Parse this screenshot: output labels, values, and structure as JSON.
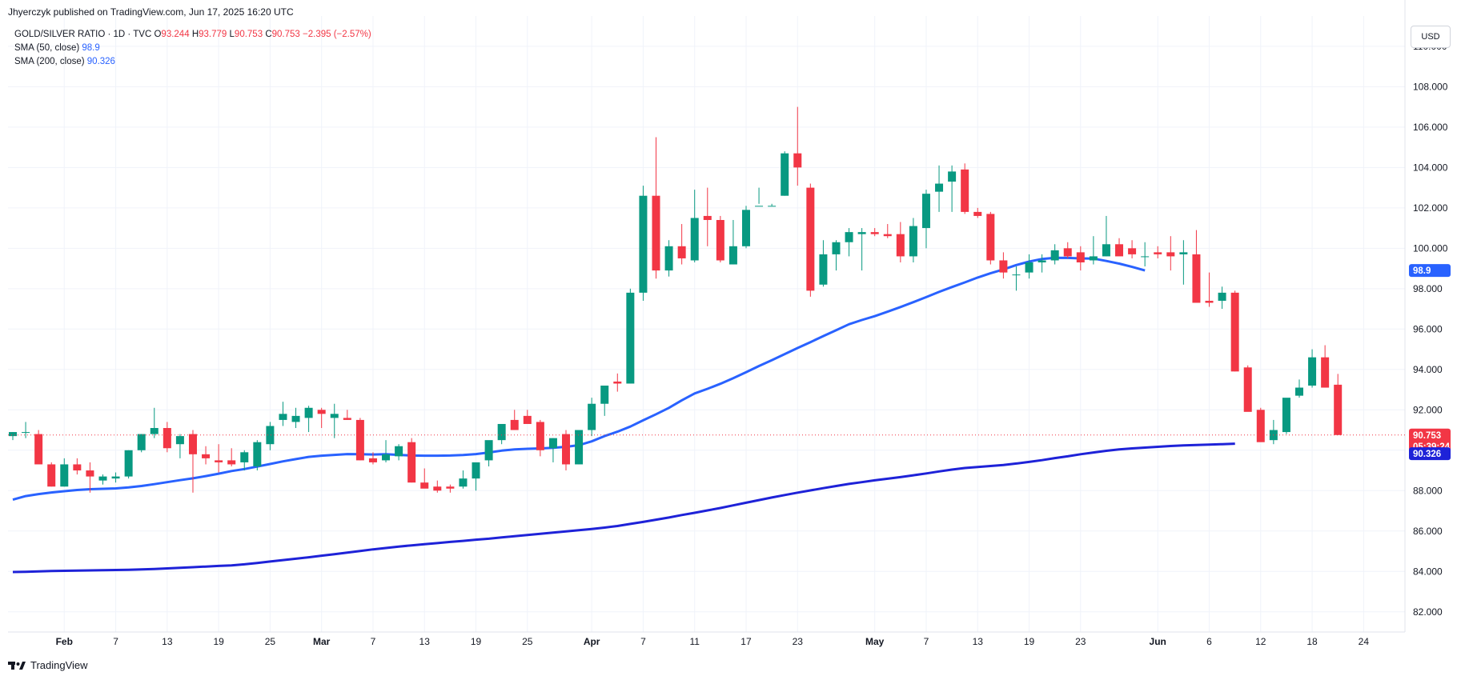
{
  "header": {
    "publisher": "Jhyerczyk published on TradingView.com, Jun 17, 2025 16:20 UTC"
  },
  "legend": {
    "symbol": "GOLD/SILVER RATIO · 1D · TVC",
    "o_label": "O",
    "o_value": "93.244",
    "h_label": "H",
    "h_value": "93.779",
    "l_label": "L",
    "l_value": "90.753",
    "c_label": "C",
    "c_value": "90.753",
    "change": "−2.395 (−2.57%)",
    "sma50_label": "SMA (50, close)",
    "sma50_value": "98.9",
    "sma200_label": "SMA (200, close)",
    "sma200_value": "90.326"
  },
  "currency_button": "USD",
  "brand": {
    "name": "TradingView"
  },
  "colors": {
    "up": "#089981",
    "down": "#f23645",
    "sma50": "#2962ff",
    "sma200": "#1e22d8",
    "grid": "#f0f3fa",
    "axis_text": "#131722"
  },
  "chart_data": {
    "type": "candlestick",
    "ylim": [
      81,
      111.5
    ],
    "y_ticks": [
      82,
      84,
      86,
      88,
      90,
      92,
      94,
      96,
      98,
      100,
      102,
      104,
      106,
      108,
      110
    ],
    "y_tick_labels": [
      "82.000",
      "84.000",
      "86.000",
      "88.000",
      "90.000",
      "92.000",
      "94.000",
      "96.000",
      "98.000",
      "100.000",
      "102.000",
      "104.000",
      "106.000",
      "108.000",
      "110.000"
    ],
    "x_ticks": [
      {
        "label": "Feb",
        "bar": 4,
        "bold": true
      },
      {
        "label": "7",
        "bar": 8
      },
      {
        "label": "13",
        "bar": 12
      },
      {
        "label": "19",
        "bar": 16
      },
      {
        "label": "25",
        "bar": 20
      },
      {
        "label": "Mar",
        "bar": 24,
        "bold": true
      },
      {
        "label": "7",
        "bar": 28
      },
      {
        "label": "13",
        "bar": 32
      },
      {
        "label": "19",
        "bar": 36
      },
      {
        "label": "25",
        "bar": 40
      },
      {
        "label": "Apr",
        "bar": 45,
        "bold": true
      },
      {
        "label": "7",
        "bar": 49
      },
      {
        "label": "11",
        "bar": 53
      },
      {
        "label": "17",
        "bar": 57
      },
      {
        "label": "23",
        "bar": 61
      },
      {
        "label": "May",
        "bar": 67,
        "bold": true
      },
      {
        "label": "7",
        "bar": 71
      },
      {
        "label": "13",
        "bar": 75
      },
      {
        "label": "19",
        "bar": 79
      },
      {
        "label": "23",
        "bar": 83
      },
      {
        "label": "Jun",
        "bar": 89,
        "bold": true
      },
      {
        "label": "6",
        "bar": 93
      },
      {
        "label": "12",
        "bar": 97
      },
      {
        "label": "18",
        "bar": 101
      },
      {
        "label": "24",
        "bar": 105
      }
    ],
    "candles": [
      [
        90.7,
        90.9,
        90.5,
        90.9
      ],
      [
        90.9,
        91.4,
        90.6,
        90.9
      ],
      [
        90.8,
        91.0,
        89.5,
        89.3
      ],
      [
        89.3,
        89.4,
        88.2,
        88.2
      ],
      [
        88.2,
        89.6,
        88.2,
        89.3
      ],
      [
        89.3,
        89.6,
        88.8,
        89.0
      ],
      [
        89.0,
        89.4,
        87.9,
        88.7
      ],
      [
        88.5,
        88.8,
        88.3,
        88.7
      ],
      [
        88.6,
        88.9,
        88.4,
        88.7
      ],
      [
        88.7,
        90.0,
        88.6,
        90.0
      ],
      [
        90.0,
        90.8,
        89.9,
        90.8
      ],
      [
        90.8,
        92.1,
        90.6,
        91.1
      ],
      [
        91.1,
        91.4,
        89.9,
        90.1
      ],
      [
        90.3,
        90.8,
        89.6,
        90.7
      ],
      [
        90.8,
        91.0,
        87.9,
        89.8
      ],
      [
        89.8,
        90.2,
        89.3,
        89.6
      ],
      [
        89.5,
        90.3,
        88.9,
        89.4
      ],
      [
        89.5,
        90.1,
        89.2,
        89.3
      ],
      [
        89.4,
        90.0,
        89.0,
        89.9
      ],
      [
        89.2,
        90.5,
        89.0,
        90.4
      ],
      [
        90.3,
        91.4,
        90.0,
        91.2
      ],
      [
        91.5,
        92.4,
        91.2,
        91.8
      ],
      [
        91.4,
        92.1,
        91.1,
        91.7
      ],
      [
        91.6,
        92.2,
        90.9,
        92.1
      ],
      [
        92.0,
        92.1,
        91.1,
        91.8
      ],
      [
        91.6,
        92.3,
        90.6,
        91.8
      ],
      [
        91.6,
        92.0,
        91.5,
        91.5
      ],
      [
        91.5,
        91.6,
        89.5,
        89.5
      ],
      [
        89.6,
        89.9,
        89.3,
        89.4
      ],
      [
        89.5,
        90.5,
        89.4,
        89.8
      ],
      [
        89.7,
        90.3,
        89.5,
        90.2
      ],
      [
        90.4,
        90.6,
        88.4,
        88.4
      ],
      [
        88.4,
        89.1,
        88.2,
        88.1
      ],
      [
        88.2,
        88.5,
        87.9,
        88.0
      ],
      [
        88.2,
        88.3,
        87.9,
        88.1
      ],
      [
        88.2,
        89.0,
        88.1,
        88.6
      ],
      [
        88.6,
        89.2,
        88.0,
        89.4
      ],
      [
        89.5,
        90.4,
        89.2,
        90.5
      ],
      [
        90.5,
        91.2,
        90.3,
        91.3
      ],
      [
        91.5,
        92.0,
        91.2,
        91.0
      ],
      [
        91.7,
        92.0,
        91.6,
        91.3
      ],
      [
        91.4,
        91.5,
        89.7,
        90.0
      ],
      [
        90.1,
        90.6,
        89.4,
        90.6
      ],
      [
        90.8,
        91.0,
        89.0,
        89.3
      ],
      [
        89.3,
        90.8,
        89.3,
        91.0
      ],
      [
        91.0,
        92.6,
        90.7,
        92.3
      ],
      [
        92.3,
        92.9,
        91.7,
        93.2
      ],
      [
        93.4,
        93.8,
        92.9,
        93.3
      ],
      [
        93.3,
        98.0,
        93.3,
        97.8
      ],
      [
        97.8,
        103.1,
        97.4,
        102.6
      ],
      [
        102.6,
        105.5,
        98.5,
        98.9
      ],
      [
        98.9,
        100.4,
        98.6,
        100.1
      ],
      [
        100.1,
        101.2,
        99.2,
        99.5
      ],
      [
        99.4,
        102.9,
        99.3,
        101.5
      ],
      [
        101.6,
        103.0,
        100.1,
        101.4
      ],
      [
        101.4,
        101.6,
        99.3,
        99.4
      ],
      [
        99.2,
        101.4,
        99.2,
        100.1
      ],
      [
        100.1,
        102.1,
        100.0,
        101.9
      ],
      [
        102.1,
        103.0,
        102.2,
        102.1
      ],
      [
        102.1,
        102.2,
        102.1,
        102.1
      ],
      [
        102.6,
        104.8,
        102.6,
        104.7
      ],
      [
        104.7,
        107.0,
        103.1,
        104.0
      ],
      [
        103.0,
        103.2,
        97.6,
        97.9
      ],
      [
        98.2,
        100.4,
        98.1,
        99.7
      ],
      [
        99.7,
        100.4,
        98.9,
        100.3
      ],
      [
        100.3,
        101.0,
        99.6,
        100.8
      ],
      [
        100.7,
        101.0,
        98.9,
        100.8
      ],
      [
        100.8,
        101.0,
        100.6,
        100.7
      ],
      [
        100.7,
        101.2,
        100.5,
        100.6
      ],
      [
        100.7,
        101.3,
        99.3,
        99.6
      ],
      [
        99.6,
        101.5,
        99.3,
        101.1
      ],
      [
        101.0,
        102.9,
        100.0,
        102.7
      ],
      [
        102.8,
        104.1,
        101.8,
        103.2
      ],
      [
        103.3,
        104.1,
        101.8,
        103.8
      ],
      [
        103.9,
        104.2,
        101.7,
        101.8
      ],
      [
        101.8,
        102.0,
        101.5,
        101.6
      ],
      [
        101.7,
        101.8,
        99.2,
        99.4
      ],
      [
        99.4,
        99.8,
        98.5,
        98.8
      ],
      [
        98.7,
        99.1,
        97.9,
        98.7
      ],
      [
        98.8,
        99.7,
        98.5,
        99.3
      ],
      [
        99.3,
        99.7,
        98.8,
        99.4
      ],
      [
        99.4,
        100.2,
        99.2,
        99.9
      ],
      [
        100.0,
        100.3,
        99.5,
        99.6
      ],
      [
        99.8,
        100.1,
        98.9,
        99.3
      ],
      [
        99.4,
        100.6,
        99.2,
        99.6
      ],
      [
        99.6,
        101.6,
        99.6,
        100.2
      ],
      [
        100.2,
        100.5,
        99.7,
        99.6
      ],
      [
        100.0,
        100.4,
        99.5,
        99.7
      ],
      [
        99.6,
        100.3,
        99.1,
        99.6
      ],
      [
        99.8,
        100.1,
        99.5,
        99.7
      ],
      [
        99.8,
        100.6,
        98.9,
        99.6
      ],
      [
        99.7,
        100.4,
        98.2,
        99.8
      ],
      [
        99.7,
        100.9,
        97.3,
        97.3
      ],
      [
        97.4,
        98.8,
        97.1,
        97.3
      ],
      [
        97.4,
        98.1,
        97.0,
        97.8
      ],
      [
        97.8,
        97.9,
        93.9,
        93.9
      ],
      [
        94.1,
        94.2,
        92.0,
        91.9
      ],
      [
        92.0,
        92.1,
        90.5,
        90.4
      ],
      [
        90.5,
        91.5,
        90.3,
        91.0
      ],
      [
        90.9,
        92.5,
        90.8,
        92.6
      ],
      [
        92.7,
        93.5,
        92.6,
        93.1
      ],
      [
        93.2,
        95.0,
        93.1,
        94.6
      ],
      [
        94.6,
        95.2,
        93.1,
        93.1
      ],
      [
        93.244,
        93.779,
        90.753,
        90.753
      ]
    ],
    "sma50": [
      87.55,
      87.73,
      87.83,
      87.91,
      87.97,
      88.03,
      88.07,
      88.09,
      88.11,
      88.16,
      88.23,
      88.32,
      88.42,
      88.52,
      88.61,
      88.72,
      88.84,
      88.97,
      89.07,
      89.19,
      89.32,
      89.45,
      89.56,
      89.67,
      89.73,
      89.77,
      89.81,
      89.8,
      89.79,
      89.8,
      89.77,
      89.74,
      89.73,
      89.73,
      89.74,
      89.76,
      89.81,
      89.89,
      89.98,
      90.04,
      90.07,
      90.09,
      90.12,
      90.17,
      90.25,
      90.44,
      90.7,
      90.92,
      91.17,
      91.48,
      91.78,
      92.1,
      92.47,
      92.81,
      93.04,
      93.29,
      93.57,
      93.86,
      94.17,
      94.46,
      94.76,
      95.06,
      95.35,
      95.65,
      95.94,
      96.24,
      96.45,
      96.64,
      96.86,
      97.09,
      97.33,
      97.58,
      97.84,
      98.08,
      98.31,
      98.55,
      98.76,
      98.95,
      99.17,
      99.34,
      99.47,
      99.53,
      99.52,
      99.5,
      99.49,
      99.37,
      99.24,
      99.08,
      98.9
    ],
    "sma50_start_bar": 0,
    "sma200": [
      83.97,
      83.98,
      84.0,
      84.02,
      84.03,
      84.04,
      84.05,
      84.06,
      84.07,
      84.08,
      84.1,
      84.12,
      84.15,
      84.18,
      84.21,
      84.24,
      84.27,
      84.3,
      84.35,
      84.42,
      84.49,
      84.56,
      84.63,
      84.7,
      84.78,
      84.85,
      84.93,
      85.01,
      85.09,
      85.16,
      85.23,
      85.29,
      85.35,
      85.4,
      85.46,
      85.51,
      85.57,
      85.62,
      85.68,
      85.74,
      85.8,
      85.86,
      85.92,
      85.98,
      86.04,
      86.1,
      86.17,
      86.25,
      86.35,
      86.45,
      86.56,
      86.67,
      86.79,
      86.9,
      87.02,
      87.14,
      87.27,
      87.4,
      87.53,
      87.66,
      87.78,
      87.9,
      88.01,
      88.12,
      88.23,
      88.33,
      88.42,
      88.51,
      88.59,
      88.67,
      88.76,
      88.85,
      88.95,
      89.04,
      89.12,
      89.17,
      89.22,
      89.27,
      89.34,
      89.42,
      89.51,
      89.61,
      89.7,
      89.8,
      89.89,
      89.97,
      90.04,
      90.09,
      90.13,
      90.17,
      90.21,
      90.24,
      90.26,
      90.28,
      90.3,
      90.326
    ],
    "sma200_start_bar": 0,
    "last_price": "90.753",
    "countdown": "05:39:24",
    "sma50_tag": "98.9",
    "sma200_tag": "90.326"
  }
}
